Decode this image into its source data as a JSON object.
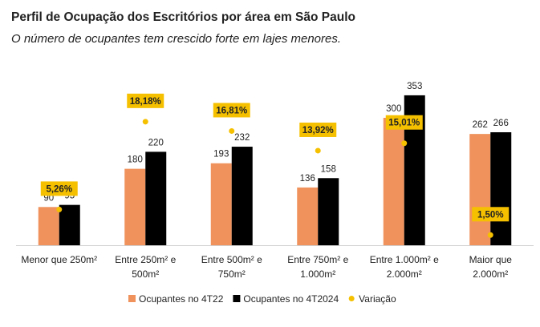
{
  "chart_data": {
    "type": "bar",
    "title": "Perfil de Ocupação dos Escritórios por área em São Paulo",
    "subtitle": "O número de ocupantes tem crescido forte em lajes menores.",
    "categories": [
      [
        "Menor que 250m²"
      ],
      [
        "Entre 250m² e",
        "500m²"
      ],
      [
        "Entre 500m² e",
        "750m²"
      ],
      [
        "Entre 750m² e",
        "1.000m²"
      ],
      [
        "Entre 1.000m² e",
        "2.000m²"
      ],
      [
        "Maior que",
        "2.000m²"
      ]
    ],
    "series": [
      {
        "name": "Ocupantes no 4T22",
        "values": [
          90,
          180,
          193,
          136,
          300,
          262
        ],
        "color": "#F0925C"
      },
      {
        "name": "Ocupantes no 4T2024",
        "values": [
          95,
          220,
          232,
          158,
          353,
          266
        ],
        "color": "#000000"
      }
    ],
    "variation": {
      "name": "Variação",
      "values": [
        5.26,
        18.18,
        16.81,
        13.92,
        15.01,
        1.5
      ],
      "labels": [
        "5,26%",
        "18,18%",
        "16,81%",
        "13,92%",
        "15,01%",
        "1,50%"
      ],
      "color": "#F5C000",
      "ylim": [
        0,
        25
      ]
    },
    "ylim": [
      0,
      400
    ],
    "grid": false,
    "legend_position": "bottom"
  }
}
